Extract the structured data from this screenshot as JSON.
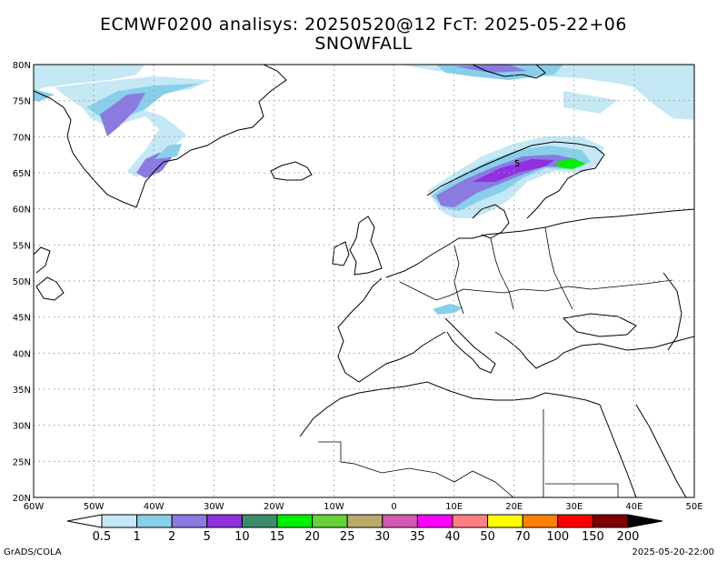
{
  "title_line1": "ECMWF0200 analisys: 20250520@12 FcT: 2025-05-22+06",
  "title_line2": "SNOWFALL",
  "map": {
    "lon_labels": [
      "60W",
      "50W",
      "40W",
      "30W",
      "20W",
      "10W",
      "0",
      "10E",
      "20E",
      "30E",
      "40E",
      "50E"
    ],
    "lat_labels": [
      "20N",
      "25N",
      "30N",
      "35N",
      "40N",
      "45N",
      "50N",
      "55N",
      "60N",
      "65N",
      "70N",
      "75N",
      "80N"
    ],
    "contour_label": "5"
  },
  "colorbar": {
    "labels": [
      "0.5",
      "1",
      "2",
      "5",
      "10",
      "15",
      "20",
      "25",
      "30",
      "35",
      "40",
      "50",
      "70",
      "100",
      "150",
      "200"
    ],
    "colors": [
      "#c4e8f4",
      "#88cfea",
      "#8a7ae2",
      "#9030e0",
      "#3c8c6c",
      "#00f000",
      "#66d23c",
      "#bcaa6a",
      "#d458b4",
      "#ff00ff",
      "#ff8080",
      "#ffff00",
      "#ff8000",
      "#ff0000",
      "#800000"
    ]
  },
  "footer": {
    "left": "GrADS/COLA",
    "right": "2025-05-20-22:00"
  }
}
